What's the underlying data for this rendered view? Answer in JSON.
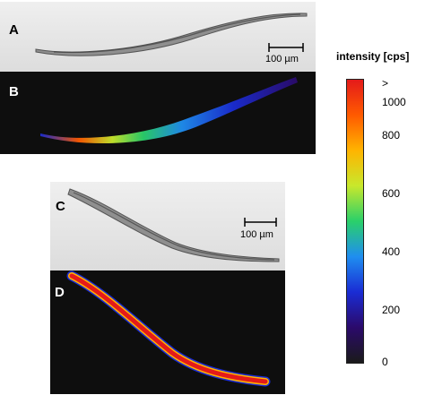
{
  "panels": {
    "a": {
      "label": "A",
      "scale_label": "100 µm"
    },
    "b": {
      "label": "B"
    },
    "c": {
      "label": "C",
      "scale_label": "100 µm"
    },
    "d": {
      "label": "D"
    }
  },
  "colorbar": {
    "title": "intensity [cps]",
    "top_marker": ">",
    "ticks": [
      "1000",
      "800",
      "600",
      "400",
      "200",
      "0"
    ],
    "colors": [
      "#1a1a1a",
      "#2b0a6b",
      "#1a2cd4",
      "#1f8ef0",
      "#2ad06a",
      "#c8e82c",
      "#ffb400",
      "#ff5a00",
      "#e41a1a"
    ]
  }
}
